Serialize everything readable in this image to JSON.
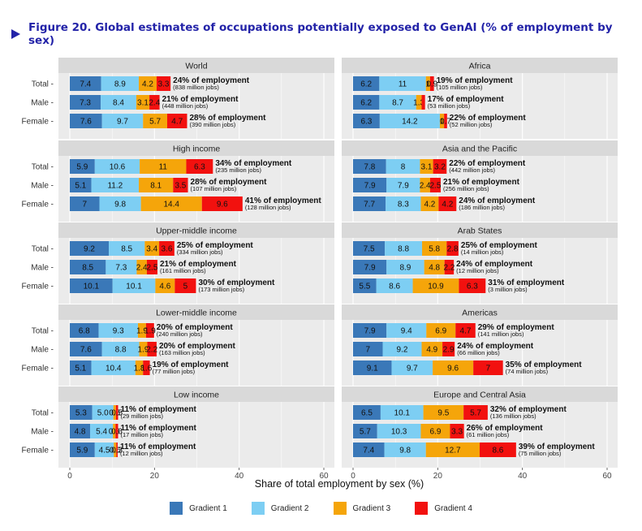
{
  "figure": {
    "title": "Figure 20. Global estimates of occupations potentially exposed to GenAI (% of employment by sex)"
  },
  "colors": {
    "gradient1": "#3a78b8",
    "gradient2": "#7dcef3",
    "gradient3": "#f5a50a",
    "gradient4": "#f2110f",
    "panel_bg": "#ebebeb",
    "strip_bg": "#d9d9d9",
    "title": "#2323a8"
  },
  "legend": {
    "items": [
      {
        "label": "Gradient 1",
        "color": "#3a78b8"
      },
      {
        "label": "Gradient 2",
        "color": "#7dcef3"
      },
      {
        "label": "Gradient 3",
        "color": "#f5a50a"
      },
      {
        "label": "Gradient 4",
        "color": "#f2110f"
      }
    ]
  },
  "chart_data": {
    "type": "bar",
    "orientation": "horizontal",
    "stacked": true,
    "xlabel": "Share of total employment by sex (%)",
    "xlim": [
      0,
      60
    ],
    "xticks": [
      0,
      20,
      40,
      60
    ],
    "grid": true,
    "legend_position": "bottom",
    "categories": [
      "Total",
      "Male",
      "Female"
    ],
    "series_names": [
      "Gradient 1",
      "Gradient 2",
      "Gradient 3",
      "Gradient 4"
    ],
    "panels": [
      {
        "title": "World",
        "rows": [
          {
            "category": "Total",
            "values": [
              7.4,
              8.9,
              4.2,
              3.3
            ],
            "labels": [
              "7.4",
              "8.9",
              "4.2",
              "3.3"
            ],
            "annotation": "24% of employment",
            "subannotation": "(838 million jobs)"
          },
          {
            "category": "Male",
            "values": [
              7.3,
              8.4,
              3.1,
              2.4
            ],
            "labels": [
              "7.3",
              "8.4",
              "3.1",
              "2.4"
            ],
            "annotation": "21% of employment",
            "subannotation": "(448 million jobs)"
          },
          {
            "category": "Female",
            "values": [
              7.6,
              9.7,
              5.7,
              4.7
            ],
            "labels": [
              "7.6",
              "9.7",
              "5.7",
              "4.7"
            ],
            "annotation": "28% of employment",
            "subannotation": "(390 million jobs)"
          }
        ]
      },
      {
        "title": "Africa",
        "rows": [
          {
            "category": "Total",
            "values": [
              6.2,
              11,
              1,
              0.9
            ],
            "labels": [
              "6.2",
              "11",
              "1",
              "0.9"
            ],
            "annotation": "19% of employment",
            "subannotation": "(105 million jobs)"
          },
          {
            "category": "Male",
            "values": [
              6.2,
              8.7,
              1.3,
              0.8
            ],
            "labels": [
              "6.2",
              "8.7",
              "1.3",
              ""
            ],
            "annotation": "17% of employment",
            "subannotation": "(53 million jobs)"
          },
          {
            "category": "Female",
            "values": [
              6.3,
              14.2,
              1,
              0.7
            ],
            "labels": [
              "6.3",
              "14.2",
              "1",
              "0.7"
            ],
            "annotation": "22% of employment",
            "subannotation": "(52 million jobs)"
          }
        ]
      },
      {
        "title": "High income",
        "rows": [
          {
            "category": "Total",
            "values": [
              5.9,
              10.6,
              11,
              6.3
            ],
            "labels": [
              "5.9",
              "10.6",
              "11",
              "6.3"
            ],
            "annotation": "34% of employment",
            "subannotation": "(235 million jobs)"
          },
          {
            "category": "Male",
            "values": [
              5.1,
              11.2,
              8.1,
              3.5
            ],
            "labels": [
              "5.1",
              "11.2",
              "8.1",
              "3.5"
            ],
            "annotation": "28% of employment",
            "subannotation": "(107 million jobs)"
          },
          {
            "category": "Female",
            "values": [
              7,
              9.8,
              14.4,
              9.6
            ],
            "labels": [
              "7",
              "9.8",
              "14.4",
              "9.6"
            ],
            "annotation": "41% of employment",
            "subannotation": "(128 million jobs)"
          }
        ]
      },
      {
        "title": "Asia and the Pacific",
        "rows": [
          {
            "category": "Total",
            "values": [
              7.8,
              8,
              3.1,
              3.2
            ],
            "labels": [
              "7.8",
              "8",
              "3.1",
              "3.2"
            ],
            "annotation": "22% of employment",
            "subannotation": "(442 million jobs)"
          },
          {
            "category": "Male",
            "values": [
              7.9,
              7.9,
              2.4,
              2.5
            ],
            "labels": [
              "7.9",
              "7.9",
              "2.4",
              "2.5"
            ],
            "annotation": "21% of employment",
            "subannotation": "(256 million jobs)"
          },
          {
            "category": "Female",
            "values": [
              7.7,
              8.3,
              4.2,
              4.2
            ],
            "labels": [
              "7.7",
              "8.3",
              "4.2",
              "4.2"
            ],
            "annotation": "24% of employment",
            "subannotation": "(186 million jobs)"
          }
        ]
      },
      {
        "title": "Upper-middle income",
        "rows": [
          {
            "category": "Total",
            "values": [
              9.2,
              8.5,
              3.4,
              3.6
            ],
            "labels": [
              "9.2",
              "8.5",
              "3.4",
              "3.6"
            ],
            "annotation": "25% of employment",
            "subannotation": "(334 million jobs)"
          },
          {
            "category": "Male",
            "values": [
              8.5,
              7.3,
              2.4,
              2.5
            ],
            "labels": [
              "8.5",
              "7.3",
              "2.4",
              "2.5"
            ],
            "annotation": "21% of employment",
            "subannotation": "(161 million jobs)"
          },
          {
            "category": "Female",
            "values": [
              10.1,
              10.1,
              4.6,
              5
            ],
            "labels": [
              "10.1",
              "10.1",
              "4.6",
              "5"
            ],
            "annotation": "30% of employment",
            "subannotation": "(173 million jobs)"
          }
        ]
      },
      {
        "title": "Arab States",
        "rows": [
          {
            "category": "Total",
            "values": [
              7.5,
              8.8,
              5.8,
              2.8
            ],
            "labels": [
              "7.5",
              "8.8",
              "5.8",
              "2.8"
            ],
            "annotation": "25% of employment",
            "subannotation": "(14 million jobs)"
          },
          {
            "category": "Male",
            "values": [
              7.9,
              8.9,
              4.8,
              2.2
            ],
            "labels": [
              "7.9",
              "8.9",
              "4.8",
              "2.2"
            ],
            "annotation": "24% of employment",
            "subannotation": "(12 million jobs)"
          },
          {
            "category": "Female",
            "values": [
              5.5,
              8.6,
              10.9,
              6.3
            ],
            "labels": [
              "5.5",
              "8.6",
              "10.9",
              "6.3"
            ],
            "annotation": "31% of employment",
            "subannotation": "(3 million jobs)"
          }
        ]
      },
      {
        "title": "Lower-middle income",
        "rows": [
          {
            "category": "Total",
            "values": [
              6.8,
              9.3,
              1.9,
              1.9
            ],
            "labels": [
              "6.8",
              "9.3",
              "1.9",
              "1.9"
            ],
            "annotation": "20% of employment",
            "subannotation": "(240 million jobs)"
          },
          {
            "category": "Male",
            "values": [
              7.6,
              8.8,
              1.9,
              2.2
            ],
            "labels": [
              "7.6",
              "8.8",
              "1.9",
              "2.2"
            ],
            "annotation": "20% of employment",
            "subannotation": "(163 million jobs)"
          },
          {
            "category": "Female",
            "values": [
              5.1,
              10.4,
              1.8,
              1.6
            ],
            "labels": [
              "5.1",
              "10.4",
              "1.8",
              "1.6"
            ],
            "annotation": "19% of employment",
            "subannotation": "(77 million jobs)"
          }
        ]
      },
      {
        "title": "Americas",
        "rows": [
          {
            "category": "Total",
            "values": [
              7.9,
              9.4,
              6.9,
              4.7
            ],
            "labels": [
              "7.9",
              "9.4",
              "6.9",
              "4.7"
            ],
            "annotation": "29% of employment",
            "subannotation": "(141 million jobs)"
          },
          {
            "category": "Male",
            "values": [
              7,
              9.2,
              4.9,
              2.9
            ],
            "labels": [
              "7",
              "9.2",
              "4.9",
              "2.9"
            ],
            "annotation": "24% of employment",
            "subannotation": "(66 million jobs)"
          },
          {
            "category": "Female",
            "values": [
              9.1,
              9.7,
              9.6,
              7
            ],
            "labels": [
              "9.1",
              "9.7",
              "9.6",
              "7"
            ],
            "annotation": "35% of employment",
            "subannotation": "(74 million jobs)"
          }
        ]
      },
      {
        "title": "Low income",
        "rows": [
          {
            "category": "Total",
            "values": [
              5.3,
              5,
              0.6,
              0.5
            ],
            "labels": [
              "5.3",
              "5.0",
              "0.6",
              "0.5"
            ],
            "annotation": "11% of employment",
            "subannotation": "(29 million jobs)"
          },
          {
            "category": "Male",
            "values": [
              4.8,
              5.4,
              0.6,
              0.6
            ],
            "labels": [
              "4.8",
              "5.4",
              "0.6",
              "0.6"
            ],
            "annotation": "11% of employment",
            "subannotation": "(17 million jobs)"
          },
          {
            "category": "Female",
            "values": [
              5.9,
              4.5,
              0.6,
              0.3
            ],
            "labels": [
              "5.9",
              "4.5",
              "0.6",
              "0.3"
            ],
            "annotation": "11% of employment",
            "subannotation": "(12 million jobs)"
          }
        ]
      },
      {
        "title": "Europe and Central Asia",
        "rows": [
          {
            "category": "Total",
            "values": [
              6.5,
              10.1,
              9.5,
              5.7
            ],
            "labels": [
              "6.5",
              "10.1",
              "9.5",
              "5.7"
            ],
            "annotation": "32% of employment",
            "subannotation": "(136 million jobs)"
          },
          {
            "category": "Male",
            "values": [
              5.7,
              10.3,
              6.9,
              3.3
            ],
            "labels": [
              "5.7",
              "10.3",
              "6.9",
              "3.3"
            ],
            "annotation": "26% of employment",
            "subannotation": "(61 million jobs)"
          },
          {
            "category": "Female",
            "values": [
              7.4,
              9.8,
              12.7,
              8.6
            ],
            "labels": [
              "7.4",
              "9.8",
              "12.7",
              "8.6"
            ],
            "annotation": "39% of employment",
            "subannotation": "(75 million jobs)"
          }
        ]
      }
    ]
  }
}
